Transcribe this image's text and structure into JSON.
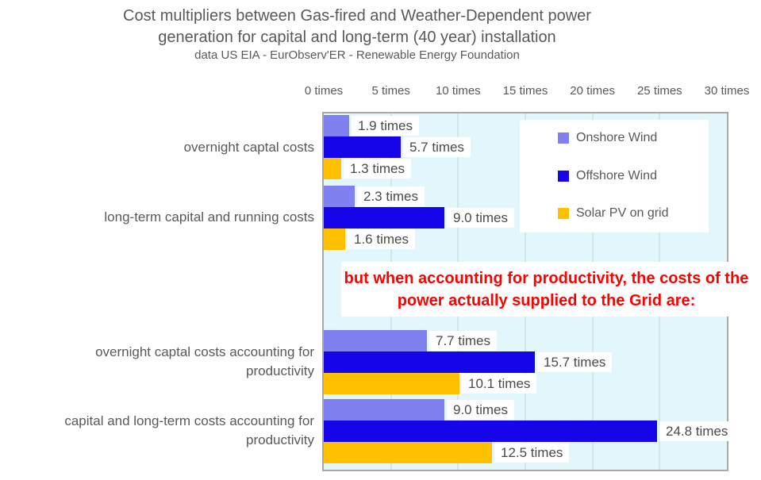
{
  "title": "Cost multipliers between Gas-fired and Weather-Dependent power generation for capital and long-term (40 year) installation",
  "subtitle": "data US  EIA - EurObserv'ER - Renewable Energy Foundation",
  "annotation": {
    "text": "but when accounting for productivity, the costs of the power actually supplied to the Grid are:",
    "color": "#ff0000"
  },
  "legend": {
    "position": "top-right",
    "items": [
      {
        "label": "Onshore Wind",
        "color": "#8080f0"
      },
      {
        "label": "Offshore Wind",
        "color": "#1605e9"
      },
      {
        "label": "Solar PV on grid",
        "color": "#ffc000"
      }
    ]
  },
  "colors": {
    "plot_background": "#e2f7fb",
    "plot_border": "#a9a9a9",
    "gridline": "#d2e6ea",
    "text": "#595959",
    "value_label_text": "#4a4a4a",
    "annotation_red": "#ff0000"
  },
  "chart_data": {
    "type": "bar",
    "orientation": "horizontal",
    "title": "Cost multipliers between Gas-fired and Weather-Dependent power generation for capital and long-term (40 year) installation",
    "subtitle": "data US  EIA - EurObserv'ER - Renewable Energy Foundation",
    "xlabel": "",
    "ylabel": "",
    "xlim": [
      0,
      30
    ],
    "grid": true,
    "x_ticks": [
      "0 times",
      "5 times",
      "10 times",
      "15 times",
      "20 times",
      "25 times",
      "30 times"
    ],
    "x_tick_values": [
      0,
      5,
      10,
      15,
      20,
      25,
      30
    ],
    "categories": [
      "overnight captal costs",
      "long-term capital and running costs",
      "overnight captal costs accounting for productivity",
      "capital and long-term costs accounting for productivity"
    ],
    "series": [
      {
        "name": "Onshore Wind",
        "color": "#8080f0",
        "values": [
          1.9,
          2.3,
          7.7,
          9.0
        ],
        "labels": [
          "1.9 times",
          "2.3 times",
          "7.7 times",
          "9.0 times"
        ]
      },
      {
        "name": "Offshore Wind",
        "color": "#1605e9",
        "values": [
          5.7,
          9.0,
          15.7,
          24.8
        ],
        "labels": [
          "5.7 times",
          "9.0 times",
          "15.7 times",
          "24.8 times"
        ]
      },
      {
        "name": "Solar PV on grid",
        "color": "#ffc000",
        "values": [
          1.3,
          1.6,
          10.1,
          12.5
        ],
        "labels": [
          "1.3 times",
          "1.6 times",
          "10.1 times",
          "12.5 times"
        ]
      }
    ],
    "annotation": "but when accounting for productivity, the costs of the power actually supplied to the Grid are:"
  }
}
